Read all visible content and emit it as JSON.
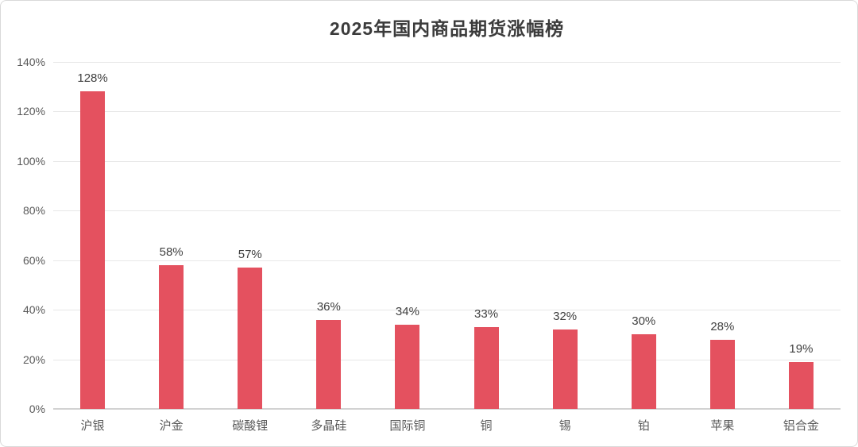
{
  "chart_data": {
    "type": "bar",
    "title": "2025年国内商品期货涨幅榜",
    "categories": [
      "沪银",
      "沪金",
      "碳酸锂",
      "多晶硅",
      "国际铜",
      "铜",
      "锡",
      "铂",
      "苹果",
      "铝合金"
    ],
    "values": [
      128,
      58,
      57,
      36,
      34,
      33,
      32,
      30,
      28,
      19
    ],
    "data_labels": [
      "128%",
      "58%",
      "57%",
      "36%",
      "34%",
      "33%",
      "32%",
      "30%",
      "28%",
      "19%"
    ],
    "xlabel": "",
    "ylabel": "",
    "ylim": [
      0,
      140
    ],
    "ytick_step": 20,
    "ytick_labels": [
      "0%",
      "20%",
      "40%",
      "60%",
      "80%",
      "100%",
      "120%",
      "140%"
    ],
    "grid": true,
    "legend": false,
    "colors": {
      "bar": "#E4515F",
      "value_label": "#404040",
      "axis_tick_label": "#595959",
      "gridline": "#E7E7E7",
      "axis_line": "#D2D2D2",
      "title": "#3B3B3B"
    }
  }
}
